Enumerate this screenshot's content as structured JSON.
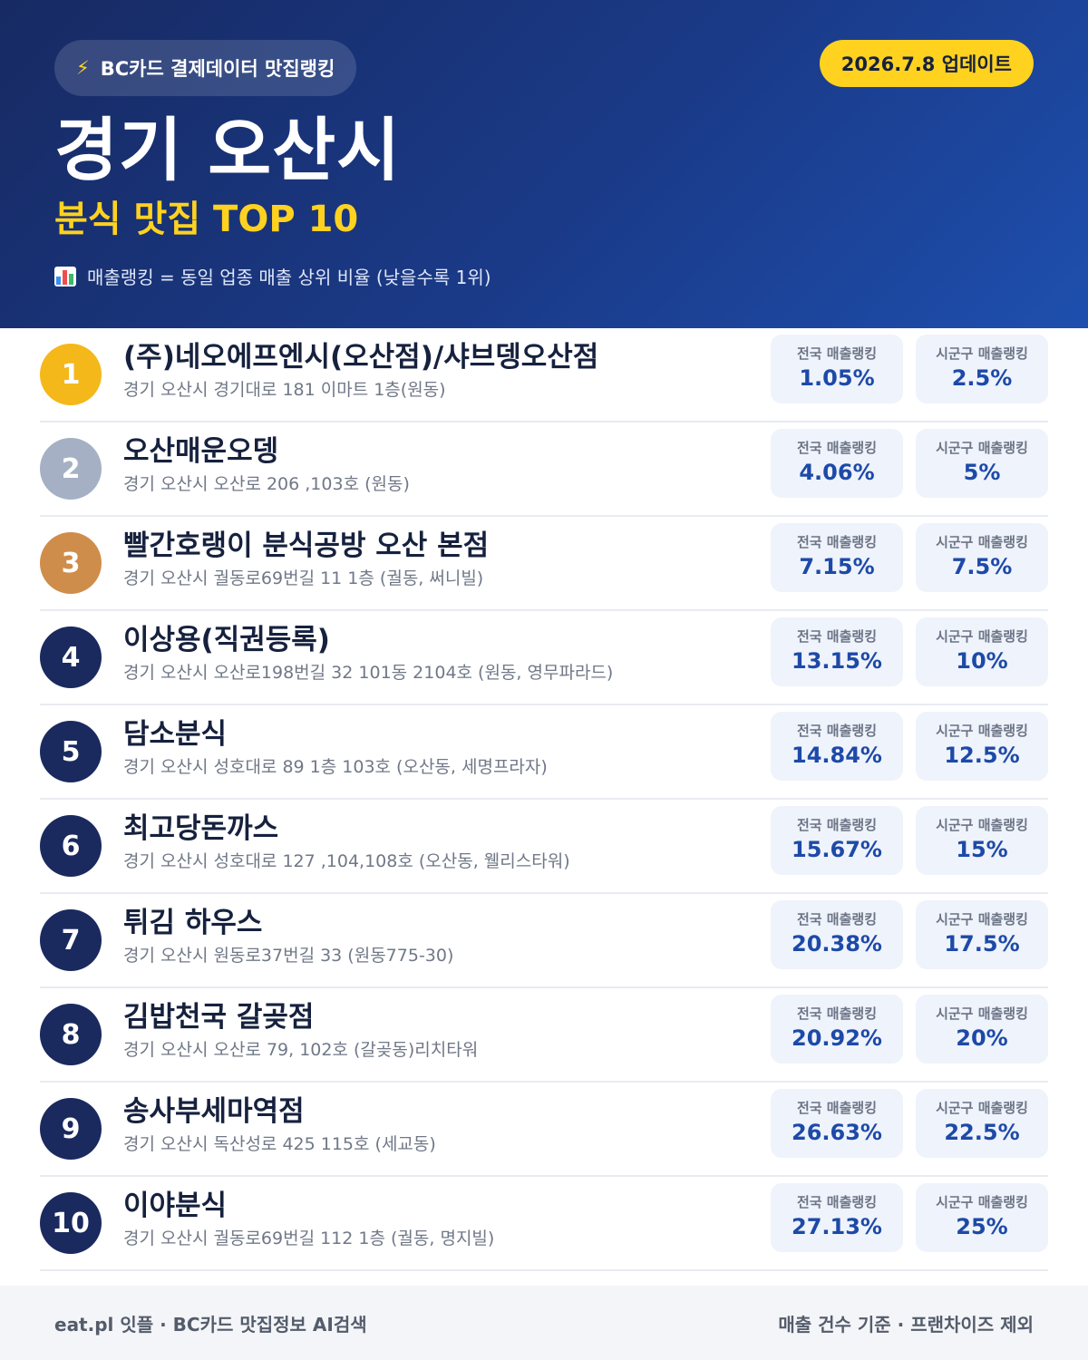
{
  "header": {
    "source_icon": "lightning-icon",
    "source_label": "BC카드 결제데이터 맛집랭킹",
    "update_label": "2026.7.8 업데이트",
    "region": "경기 오산시",
    "category": "분식 맛집 TOP 10",
    "legend_icon": "bar-chart-icon",
    "legend": "매출랭킹 = 동일 업종 매출 상위 비율 (낮을수록 1위)"
  },
  "labels": {
    "national": "전국 매출랭킹",
    "district": "시군구 매출랭킹"
  },
  "colors": {
    "header_bg": "#1a3a88",
    "accent_yellow": "#ffd21f",
    "rank_gold": "#f4b81a",
    "rank_silver": "#a5b0c4",
    "rank_bronze": "#cf8d4b",
    "rank_default": "#1a2a5e",
    "value_blue": "#1d4aa8"
  },
  "restaurants": [
    {
      "rank": "1",
      "name": "(주)네오에프엔시(오산점)/샤브뎅오산점",
      "address": "경기 오산시 경기대로 181 이마트 1층(원동)",
      "national": "1.05%",
      "district": "2.5%"
    },
    {
      "rank": "2",
      "name": "오산매운오뎅",
      "address": "경기 오산시 오산로 206 ,103호 (원동)",
      "national": "4.06%",
      "district": "5%"
    },
    {
      "rank": "3",
      "name": "빨간호랭이 분식공방 오산 본점",
      "address": "경기 오산시 궐동로69번길 11 1층 (궐동, 써니빌)",
      "national": "7.15%",
      "district": "7.5%"
    },
    {
      "rank": "4",
      "name": "이상용(직권등록)",
      "address": "경기 오산시 오산로198번길 32 101동 2104호 (원동, 영무파라드)",
      "national": "13.15%",
      "district": "10%"
    },
    {
      "rank": "5",
      "name": "담소분식",
      "address": "경기 오산시 성호대로 89 1층 103호 (오산동, 세명프라자)",
      "national": "14.84%",
      "district": "12.5%"
    },
    {
      "rank": "6",
      "name": "최고당돈까스",
      "address": "경기 오산시 성호대로 127 ,104,108호 (오산동, 웰리스타워)",
      "national": "15.67%",
      "district": "15%"
    },
    {
      "rank": "7",
      "name": "튀김 하우스",
      "address": "경기 오산시 원동로37번길 33 (원동775-30)",
      "national": "20.38%",
      "district": "17.5%"
    },
    {
      "rank": "8",
      "name": "김밥천국 갈곶점",
      "address": "경기 오산시 오산로 79, 102호 (갈곶동)리치타워",
      "national": "20.92%",
      "district": "20%"
    },
    {
      "rank": "9",
      "name": "송사부세마역점",
      "address": "경기 오산시 독산성로 425 115호 (세교동)",
      "national": "26.63%",
      "district": "22.5%"
    },
    {
      "rank": "10",
      "name": "이야분식",
      "address": "경기 오산시 궐동로69번길 112 1층 (궐동, 명지빌)",
      "national": "27.13%",
      "district": "25%"
    }
  ],
  "footer": {
    "left": "eat.pl 잇플 · BC카드 맛집정보 AI검색",
    "right": "매출 건수 기준 · 프랜차이즈 제외"
  }
}
